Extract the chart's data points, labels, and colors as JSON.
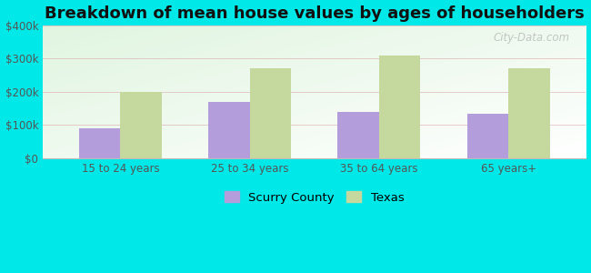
{
  "title": "Breakdown of mean house values by ages of householders",
  "categories": [
    "15 to 24 years",
    "25 to 34 years",
    "35 to 64 years",
    "65 years+"
  ],
  "scurry_values": [
    90000,
    170000,
    140000,
    135000
  ],
  "texas_values": [
    200000,
    270000,
    310000,
    270000
  ],
  "scurry_color": "#b39ddb",
  "texas_color": "#c5d89d",
  "background_color": "#00e8e8",
  "ylim": [
    0,
    400000
  ],
  "yticks": [
    0,
    100000,
    200000,
    300000,
    400000
  ],
  "ytick_labels": [
    "$0",
    "$100k",
    "$200k",
    "$300k",
    "$400k"
  ],
  "legend_scurry": "Scurry County",
  "legend_texas": "Texas",
  "bar_width": 0.32,
  "title_fontsize": 13,
  "watermark": "City-Data.com"
}
